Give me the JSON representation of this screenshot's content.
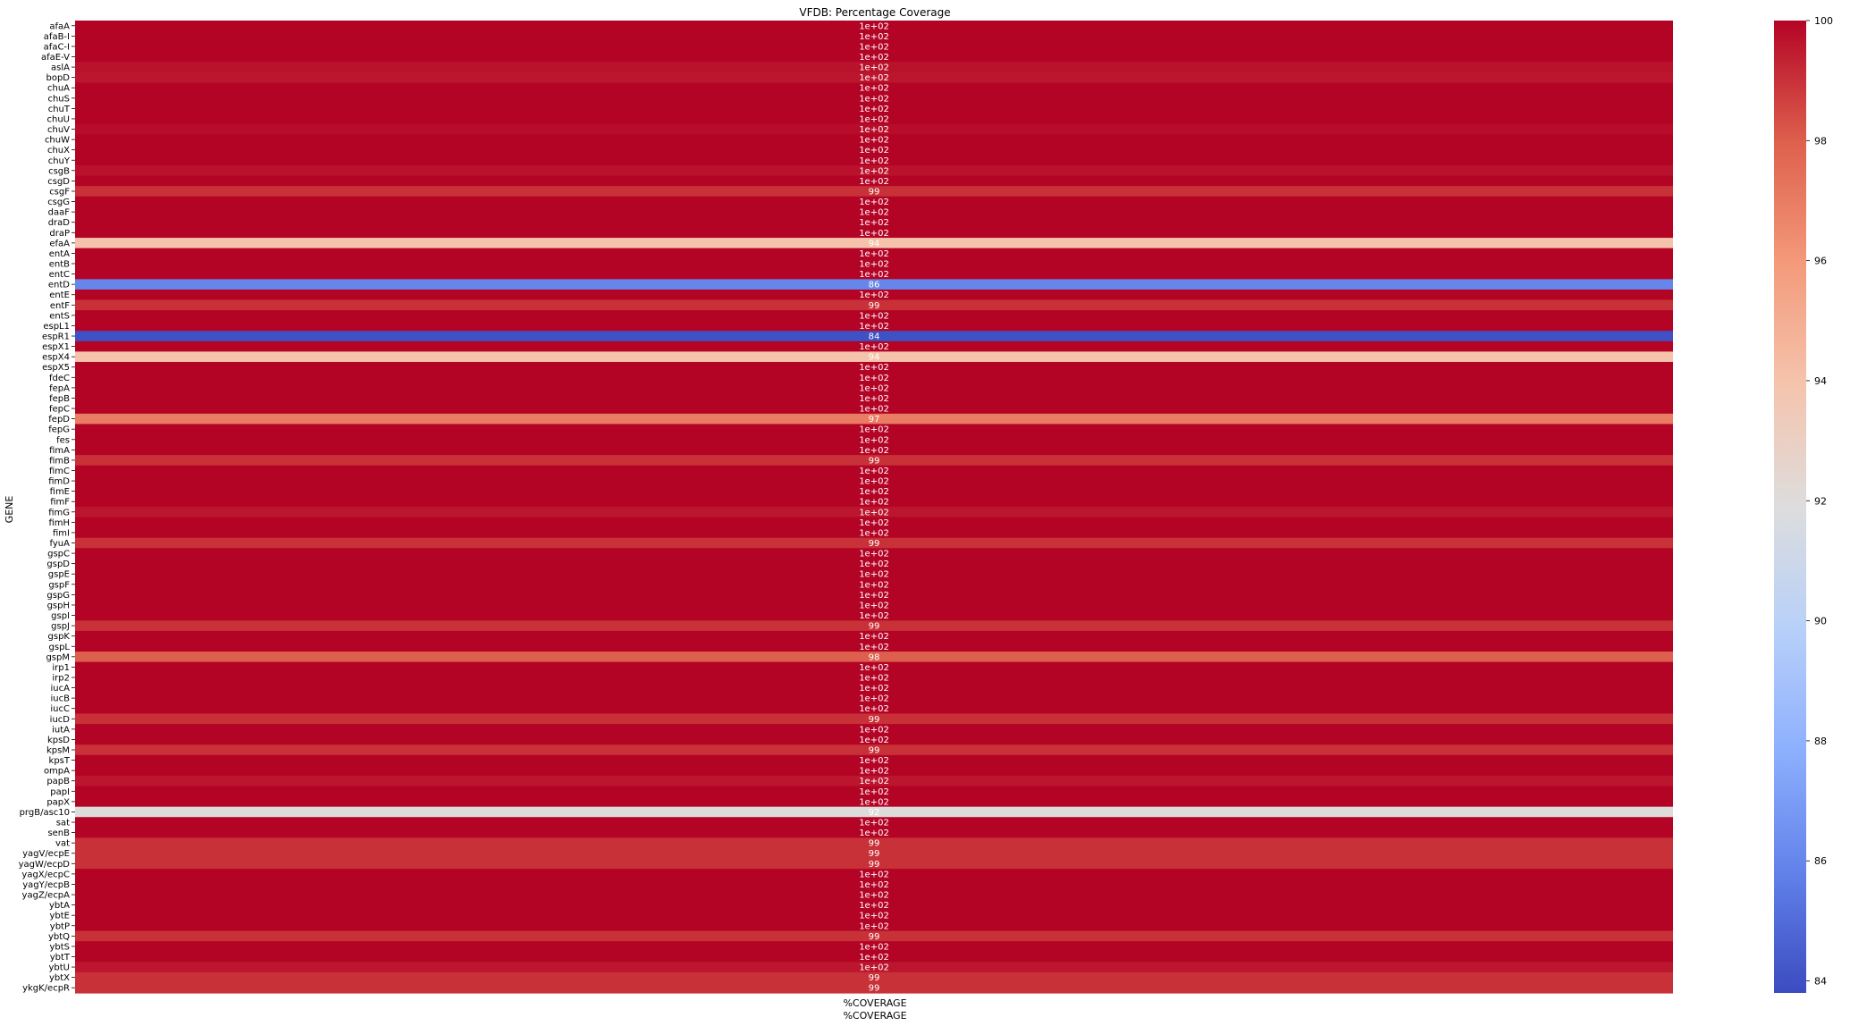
{
  "chart_data": {
    "type": "heatmap",
    "title": "VFDB: Percentage Coverage",
    "xlabel": "%COVERAGE",
    "ylabel": "GENE",
    "columns": [
      "%COVERAGE"
    ],
    "colormap": "coolwarm",
    "vmin": 83.8,
    "vmax": 100,
    "colorbar_ticks": [
      84,
      86,
      88,
      90,
      92,
      94,
      96,
      98,
      100
    ],
    "genes": [
      "afaA",
      "afaB-I",
      "afaC-I",
      "afaE-V",
      "aslA",
      "bopD",
      "chuA",
      "chuS",
      "chuT",
      "chuU",
      "chuV",
      "chuW",
      "chuX",
      "chuY",
      "csgB",
      "csgD",
      "csgF",
      "csgG",
      "daaF",
      "draD",
      "draP",
      "efaA",
      "entA",
      "entB",
      "entC",
      "entD",
      "entE",
      "entF",
      "entS",
      "espL1",
      "espR1",
      "espX1",
      "espX4",
      "espX5",
      "fdeC",
      "fepA",
      "fepB",
      "fepC",
      "fepD",
      "fepG",
      "fes",
      "fimA",
      "fimB",
      "fimC",
      "fimD",
      "fimE",
      "fimF",
      "fimG",
      "fimH",
      "fimI",
      "fyuA",
      "gspC",
      "gspD",
      "gspE",
      "gspF",
      "gspG",
      "gspH",
      "gspI",
      "gspJ",
      "gspK",
      "gspL",
      "gspM",
      "irp1",
      "irp2",
      "iucA",
      "iucB",
      "iucC",
      "iucD",
      "iutA",
      "kpsD",
      "kpsM",
      "kpsT",
      "ompA",
      "papB",
      "papI",
      "papX",
      "prgB/asc10",
      "sat",
      "senB",
      "vat",
      "yagV/ecpE",
      "yagW/ecpD",
      "yagX/ecpC",
      "yagY/ecpB",
      "yagZ/ecpA",
      "ybtA",
      "ybtE",
      "ybtP",
      "ybtQ",
      "ybtS",
      "ybtT",
      "ybtU",
      "ybtX",
      "ykgK/ecpR"
    ],
    "values": [
      100,
      100,
      100,
      100,
      99.7,
      99.6,
      100,
      100,
      100,
      100,
      99.8,
      100,
      100,
      100,
      99.7,
      100,
      99,
      100,
      100,
      100,
      100,
      94,
      100,
      100,
      100,
      86,
      100,
      99,
      100,
      100,
      84,
      100,
      94,
      100,
      100,
      100,
      100,
      100,
      97,
      100,
      100,
      100,
      99,
      100,
      100,
      100,
      100,
      99.6,
      100,
      100,
      99,
      100,
      100,
      100,
      100,
      100,
      100,
      100,
      99,
      100,
      100,
      98,
      100,
      100,
      100,
      100,
      100,
      99,
      100,
      100,
      99,
      100,
      100,
      99.6,
      100,
      100,
      92,
      100,
      100,
      99,
      99,
      99,
      100,
      100,
      100,
      100,
      100,
      100,
      99,
      100,
      100,
      99.6,
      99,
      99
    ],
    "annotations": [
      "1e+02",
      "1e+02",
      "1e+02",
      "1e+02",
      "1e+02",
      "1e+02",
      "1e+02",
      "1e+02",
      "1e+02",
      "1e+02",
      "1e+02",
      "1e+02",
      "1e+02",
      "1e+02",
      "1e+02",
      "1e+02",
      "99",
      "1e+02",
      "1e+02",
      "1e+02",
      "1e+02",
      "94",
      "1e+02",
      "1e+02",
      "1e+02",
      "86",
      "1e+02",
      "99",
      "1e+02",
      "1e+02",
      "84",
      "1e+02",
      "94",
      "1e+02",
      "1e+02",
      "1e+02",
      "1e+02",
      "1e+02",
      "97",
      "1e+02",
      "1e+02",
      "1e+02",
      "99",
      "1e+02",
      "1e+02",
      "1e+02",
      "1e+02",
      "1e+02",
      "1e+02",
      "1e+02",
      "99",
      "1e+02",
      "1e+02",
      "1e+02",
      "1e+02",
      "1e+02",
      "1e+02",
      "1e+02",
      "99",
      "1e+02",
      "1e+02",
      "98",
      "1e+02",
      "1e+02",
      "1e+02",
      "1e+02",
      "1e+02",
      "99",
      "1e+02",
      "1e+02",
      "99",
      "1e+02",
      "1e+02",
      "1e+02",
      "1e+02",
      "1e+02",
      "92",
      "1e+02",
      "1e+02",
      "99",
      "99",
      "99",
      "1e+02",
      "1e+02",
      "1e+02",
      "1e+02",
      "1e+02",
      "1e+02",
      "99",
      "1e+02",
      "1e+02",
      "1e+02",
      "99",
      "99"
    ]
  }
}
